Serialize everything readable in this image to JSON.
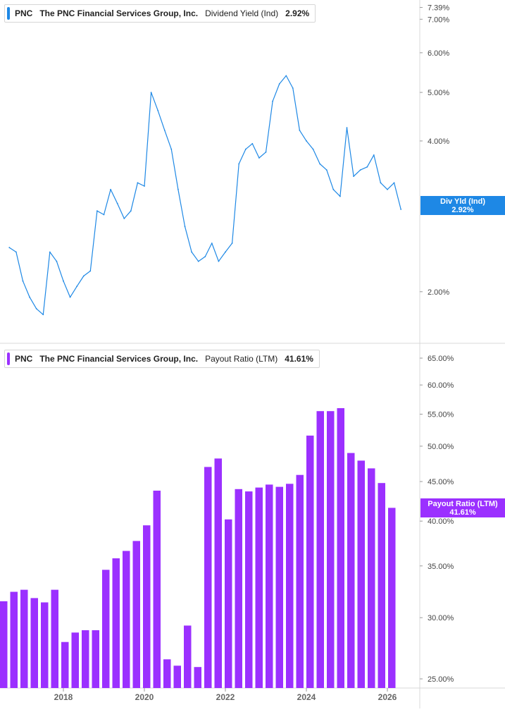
{
  "chart_data": [
    {
      "type": "line",
      "legend": {
        "ticker": "PNC",
        "company": "The PNC Financial Services Group, Inc.",
        "metric": "Dividend Yield (Ind)",
        "value": "2.92%"
      },
      "series": [
        {
          "name": "Dividend Yield (Ind)",
          "color": "#1e88e5",
          "x": [
            "2016-09",
            "2016-11",
            "2017-01",
            "2017-03",
            "2017-05",
            "2017-07",
            "2017-09",
            "2017-11",
            "2018-01",
            "2018-03",
            "2018-05",
            "2018-07",
            "2018-09",
            "2018-11",
            "2019-01",
            "2019-03",
            "2019-05",
            "2019-07",
            "2019-09",
            "2019-11",
            "2020-01",
            "2020-03",
            "2020-05",
            "2020-07",
            "2020-09",
            "2020-11",
            "2021-01",
            "2021-03",
            "2021-05",
            "2021-07",
            "2021-09",
            "2021-11",
            "2022-01",
            "2022-03",
            "2022-05",
            "2022-07",
            "2022-09",
            "2022-11",
            "2023-01",
            "2023-03",
            "2023-05",
            "2023-07",
            "2023-09",
            "2023-11",
            "2024-01",
            "2024-03",
            "2024-05",
            "2024-07",
            "2024-09",
            "2024-11",
            "2025-01",
            "2025-03",
            "2025-05",
            "2025-07",
            "2025-09",
            "2025-11",
            "2026-01",
            "2026-03",
            "2026-05"
          ],
          "y": [
            2.45,
            2.4,
            2.1,
            1.95,
            1.85,
            1.8,
            2.4,
            2.3,
            2.1,
            1.95,
            2.05,
            2.15,
            2.2,
            2.9,
            2.85,
            3.2,
            3.0,
            2.8,
            2.9,
            3.3,
            3.25,
            5.0,
            4.6,
            4.2,
            3.85,
            3.2,
            2.7,
            2.4,
            2.3,
            2.35,
            2.5,
            2.3,
            2.4,
            2.5,
            3.6,
            3.85,
            3.95,
            3.7,
            3.8,
            4.8,
            5.2,
            5.4,
            5.1,
            4.2,
            4.0,
            3.85,
            3.6,
            3.5,
            3.2,
            3.1,
            4.25,
            3.4,
            3.5,
            3.55,
            3.75,
            3.3,
            3.2,
            3.3,
            2.92
          ]
        }
      ],
      "yscale": "log",
      "ylim": [
        1.75,
        7.5
      ],
      "ytick_labels": [
        "7.39%",
        "7.00%",
        "6.00%",
        "5.00%",
        "4.00%",
        "2.00%"
      ],
      "last_value_tag": {
        "label": "Div Yld (Ind)",
        "value": "2.92%"
      }
    },
    {
      "type": "bar",
      "legend": {
        "ticker": "PNC",
        "company": "The PNC Financial Services Group, Inc.",
        "metric": "Payout Ratio (LTM)",
        "value": "41.61%"
      },
      "series": [
        {
          "name": "Payout Ratio (LTM)",
          "color": "#9b30ff",
          "x": [
            "2016-Q3",
            "2016-Q4",
            "2017-Q1",
            "2017-Q2",
            "2017-Q3",
            "2017-Q4",
            "2018-Q1",
            "2018-Q2",
            "2018-Q3",
            "2018-Q4",
            "2019-Q1",
            "2019-Q2",
            "2019-Q3",
            "2019-Q4",
            "2020-Q1",
            "2020-Q2",
            "2020-Q3",
            "2020-Q4",
            "2021-Q1",
            "2021-Q2",
            "2021-Q3",
            "2021-Q4",
            "2022-Q1",
            "2022-Q2",
            "2022-Q3",
            "2022-Q4",
            "2023-Q1",
            "2023-Q2",
            "2023-Q3",
            "2023-Q4",
            "2024-Q1",
            "2024-Q2",
            "2024-Q3",
            "2024-Q4",
            "2025-Q1",
            "2025-Q2",
            "2025-Q3",
            "2025-Q4",
            "2026-Q1"
          ],
          "values": [
            31.5,
            32.4,
            32.6,
            31.8,
            31.4,
            32.6,
            27.9,
            28.7,
            28.9,
            28.9,
            34.6,
            35.8,
            36.6,
            37.7,
            39.5,
            43.8,
            26.5,
            26.0,
            29.3,
            25.9,
            47.0,
            48.2,
            40.2,
            44.0,
            43.7,
            44.2,
            44.6,
            44.3,
            44.7,
            45.9,
            51.6,
            55.5,
            55.5,
            56.0,
            49.0,
            47.9,
            46.8,
            44.8,
            41.61
          ]
        }
      ],
      "yscale": "log",
      "ylim": [
        25.0,
        65.0
      ],
      "ytick_labels": [
        "65.00%",
        "60.00%",
        "55.00%",
        "50.00%",
        "45.00%",
        "40.00%",
        "35.00%",
        "30.00%",
        "25.00%"
      ],
      "x_tick_labels": [
        "2018",
        "2020",
        "2022",
        "2024",
        "2026"
      ],
      "last_value_tag": {
        "label": "Payout Ratio (LTM)",
        "value": "41.61%"
      }
    }
  ]
}
